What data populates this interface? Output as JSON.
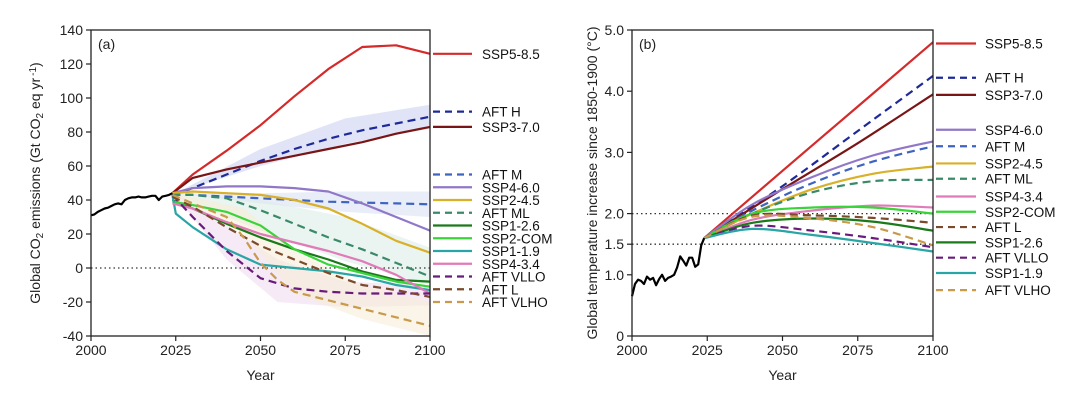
{
  "chart_data": [
    {
      "type": "line",
      "panel": "(a)",
      "title": "",
      "xlabel": "Year",
      "ylabel_parts": [
        "Global CO",
        "2",
        " emissions (Gt CO",
        "2",
        " eq yr",
        "-1",
        ")"
      ],
      "ylabel": "Global CO2 emissions (Gt CO2 eq yr-1)",
      "xlim": [
        2000,
        2100
      ],
      "ylim": [
        -40,
        140
      ],
      "xticks": [
        2000,
        2025,
        2050,
        2075,
        2100
      ],
      "yticks": [
        -40,
        -20,
        0,
        20,
        40,
        60,
        80,
        100,
        120,
        140
      ],
      "reference_lines": [
        {
          "y": 0,
          "style": "dotted"
        }
      ],
      "legend_placement": "right",
      "historical": {
        "name": "Historical",
        "color": "#000000",
        "x": [
          2000,
          2001,
          2002,
          2003,
          2004,
          2005,
          2006,
          2007,
          2008,
          2009,
          2010,
          2011,
          2012,
          2013,
          2014,
          2015,
          2016,
          2017,
          2018,
          2019,
          2020,
          2021,
          2022,
          2023,
          2024
        ],
        "y": [
          31,
          31.5,
          33,
          34,
          35,
          35.5,
          36.5,
          37.5,
          38,
          37.5,
          40,
          41,
          41.5,
          41.5,
          42,
          41.5,
          41.5,
          42,
          42.5,
          42.5,
          40,
          42,
          42.5,
          43,
          44
        ]
      },
      "bands": [
        {
          "name": "AFT H range",
          "color": "#c8cdf0",
          "x": [
            2025,
            2050,
            2075,
            2100
          ],
          "lower": [
            44,
            60,
            73,
            82
          ],
          "upper": [
            44,
            70,
            88,
            96
          ]
        },
        {
          "name": "AFT M range",
          "color": "#d5def2",
          "x": [
            2025,
            2050,
            2075,
            2100
          ],
          "lower": [
            44,
            38,
            33,
            30
          ],
          "upper": [
            44,
            44,
            45,
            45
          ]
        },
        {
          "name": "AFT ML range",
          "color": "#d8ebe3",
          "x": [
            2025,
            2050,
            2075,
            2100
          ],
          "lower": [
            42,
            22,
            4,
            -10
          ],
          "upper": [
            44,
            40,
            30,
            12
          ]
        },
        {
          "name": "AFT VLLO range",
          "color": "#efd8ef",
          "x": [
            2025,
            2040,
            2055,
            2075,
            2100
          ],
          "lower": [
            42,
            5,
            -20,
            -23,
            -22
          ],
          "upper": [
            44,
            25,
            5,
            -8,
            -10
          ]
        },
        {
          "name": "AFT VLHO range",
          "color": "#f6ecd5",
          "x": [
            2025,
            2045,
            2060,
            2080,
            2100
          ],
          "lower": [
            42,
            20,
            -15,
            -30,
            -40
          ],
          "upper": [
            44,
            35,
            10,
            -10,
            -20
          ]
        }
      ],
      "series": [
        {
          "name": "SSP5-8.5",
          "color": "#d42a2a",
          "dash": "solid",
          "x": [
            2024,
            2030,
            2040,
            2050,
            2060,
            2070,
            2080,
            2090,
            2100
          ],
          "y": [
            44,
            55,
            69,
            84,
            101,
            117,
            130,
            131,
            126
          ]
        },
        {
          "name": "AFT H",
          "color": "#1e2a9a",
          "dash": "dashed",
          "x": [
            2024,
            2030,
            2040,
            2050,
            2060,
            2070,
            2080,
            2090,
            2100
          ],
          "y": [
            43,
            47,
            55,
            63,
            70,
            76,
            81,
            85,
            89
          ]
        },
        {
          "name": "SSP3-7.0",
          "color": "#7a1515",
          "dash": "solid",
          "x": [
            2024,
            2030,
            2040,
            2050,
            2060,
            2070,
            2080,
            2090,
            2100
          ],
          "y": [
            44,
            53,
            58,
            62,
            66,
            70,
            74,
            79,
            83
          ]
        },
        {
          "name": "AFT M",
          "color": "#3f63c0",
          "dash": "dashed",
          "x": [
            2024,
            2030,
            2040,
            2050,
            2060,
            2070,
            2080,
            2090,
            2100
          ],
          "y": [
            43,
            43,
            42,
            41,
            40,
            39,
            38.5,
            38,
            37.5
          ]
        },
        {
          "name": "SSP4-6.0",
          "color": "#9077c8",
          "dash": "solid",
          "x": [
            2024,
            2030,
            2040,
            2050,
            2060,
            2070,
            2080,
            2090,
            2100
          ],
          "y": [
            44,
            47,
            48,
            48,
            47,
            45,
            38,
            30,
            22
          ]
        },
        {
          "name": "SSP2-4.5",
          "color": "#d9b02a",
          "dash": "solid",
          "x": [
            2024,
            2030,
            2040,
            2050,
            2060,
            2070,
            2080,
            2090,
            2100
          ],
          "y": [
            44,
            45,
            44,
            43,
            40,
            35,
            26,
            16,
            9
          ]
        },
        {
          "name": "AFT ML",
          "color": "#3a8a6a",
          "dash": "dashed",
          "x": [
            2024,
            2030,
            2040,
            2050,
            2060,
            2070,
            2080,
            2090,
            2100
          ],
          "y": [
            43,
            43,
            41,
            34,
            26,
            18,
            11,
            3,
            -5
          ]
        },
        {
          "name": "SSP1-2.6",
          "color": "#1a7a1a",
          "dash": "solid",
          "x": [
            2024,
            2030,
            2040,
            2050,
            2060,
            2070,
            2080,
            2090,
            2100
          ],
          "y": [
            40,
            35,
            26,
            18,
            11,
            5,
            -2,
            -7,
            -8
          ]
        },
        {
          "name": "SSP2-COM",
          "color": "#3ad43a",
          "dash": "solid",
          "x": [
            2024,
            2030,
            2040,
            2050,
            2060,
            2070,
            2080,
            2090,
            2100
          ],
          "y": [
            39,
            37,
            33,
            25,
            11,
            2,
            -3,
            -8,
            -11
          ]
        },
        {
          "name": "SSP1-1.9",
          "color": "#2aa5a5",
          "dash": "solid",
          "x": [
            2024,
            2025,
            2030,
            2040,
            2050,
            2060,
            2070,
            2080,
            2090,
            2100
          ],
          "y": [
            43,
            32,
            24,
            11,
            2,
            0,
            -2,
            -5,
            -10,
            -13
          ]
        },
        {
          "name": "SSP4-3.4",
          "color": "#e07ab8",
          "dash": "solid",
          "x": [
            2024,
            2030,
            2040,
            2050,
            2060,
            2070,
            2080,
            2090,
            2100
          ],
          "y": [
            38,
            35,
            27,
            20,
            15,
            10,
            4,
            -4,
            -15
          ]
        },
        {
          "name": "AFT VLLO",
          "color": "#6a1a7a",
          "dash": "dashed",
          "x": [
            2024,
            2030,
            2040,
            2050,
            2060,
            2070,
            2080,
            2090,
            2100
          ],
          "y": [
            43,
            30,
            10,
            -6,
            -12,
            -14,
            -15,
            -15,
            -15
          ]
        },
        {
          "name": "AFT L",
          "color": "#7a4a2a",
          "dash": "dashed",
          "x": [
            2024,
            2030,
            2040,
            2050,
            2060,
            2070,
            2080,
            2090,
            2100
          ],
          "y": [
            42,
            36,
            24,
            13,
            5,
            -3,
            -10,
            -13,
            -17
          ]
        },
        {
          "name": "AFT VLHO",
          "color": "#c89a4a",
          "dash": "dashed",
          "x": [
            2024,
            2030,
            2040,
            2045,
            2050,
            2055,
            2060,
            2070,
            2080,
            2090,
            2100
          ],
          "y": [
            43,
            38,
            30,
            18,
            3,
            -7,
            -14,
            -19,
            -24,
            -29,
            -34
          ]
        }
      ],
      "legend": [
        {
          "name": "SSP5-8.5",
          "y": 126
        },
        {
          "name": "AFT H",
          "y": 92
        },
        {
          "name": "SSP3-7.0",
          "y": 83
        },
        {
          "name": "AFT M",
          "y": 55
        },
        {
          "name": "SSP4-6.0",
          "y": 47.5
        },
        {
          "name": "SSP2-4.5",
          "y": 40
        },
        {
          "name": "AFT ML",
          "y": 32.5
        },
        {
          "name": "SSP1-2.6",
          "y": 25
        },
        {
          "name": "SSP2-COM",
          "y": 17.5
        },
        {
          "name": "SSP1-1.9",
          "y": 10
        },
        {
          "name": "SSP4-3.4",
          "y": 2.5
        },
        {
          "name": "AFT VLLO",
          "y": -5
        },
        {
          "name": "AFT L",
          "y": -12.5
        },
        {
          "name": "AFT VLHO",
          "y": -20
        }
      ]
    },
    {
      "type": "line",
      "panel": "(b)",
      "title": "",
      "xlabel": "Year",
      "ylabel": "Global temperature increase since 1850-1900 (°C)",
      "xlim": [
        2000,
        2100
      ],
      "ylim": [
        0,
        5.0
      ],
      "xticks": [
        2000,
        2025,
        2050,
        2075,
        2100
      ],
      "yticks": [
        0,
        1.0,
        1.5,
        2.0,
        3.0,
        4.0,
        5.0
      ],
      "ytick_labels": [
        "0",
        "1.0",
        "1.5",
        "2.0",
        "3.0",
        "4.0",
        "5.0"
      ],
      "reference_lines": [
        {
          "y": 1.5,
          "style": "dotted"
        },
        {
          "y": 2.0,
          "style": "dotted"
        }
      ],
      "legend_placement": "right",
      "historical": {
        "name": "Historical",
        "color": "#000000",
        "x": [
          2000,
          2001,
          2002,
          2003,
          2004,
          2005,
          2006,
          2007,
          2008,
          2009,
          2010,
          2011,
          2012,
          2013,
          2014,
          2015,
          2016,
          2017,
          2018,
          2019,
          2020,
          2021,
          2022,
          2023,
          2024
        ],
        "y": [
          0.65,
          0.85,
          0.92,
          0.9,
          0.85,
          0.97,
          0.92,
          0.95,
          0.83,
          0.93,
          1.0,
          0.9,
          0.95,
          0.97,
          1.0,
          1.12,
          1.3,
          1.23,
          1.15,
          1.28,
          1.28,
          1.13,
          1.17,
          1.48,
          1.6
        ]
      },
      "series": [
        {
          "name": "SSP5-8.5",
          "color": "#d42a2a",
          "dash": "solid",
          "x": [
            2024,
            2050,
            2075,
            2100
          ],
          "y": [
            1.6,
            2.7,
            3.75,
            4.8
          ]
        },
        {
          "name": "AFT H",
          "color": "#1e2a9a",
          "dash": "dashed",
          "x": [
            2024,
            2050,
            2075,
            2100
          ],
          "y": [
            1.6,
            2.45,
            3.35,
            4.25
          ]
        },
        {
          "name": "SSP3-7.0",
          "color": "#7a1515",
          "dash": "solid",
          "x": [
            2024,
            2050,
            2075,
            2100
          ],
          "y": [
            1.6,
            2.4,
            3.15,
            3.95
          ]
        },
        {
          "name": "SSP4-6.0",
          "color": "#9077c8",
          "dash": "solid",
          "x": [
            2024,
            2040,
            2060,
            2080,
            2100
          ],
          "y": [
            1.6,
            2.15,
            2.6,
            2.95,
            3.18
          ]
        },
        {
          "name": "AFT M",
          "color": "#3f63c0",
          "dash": "dashed",
          "x": [
            2024,
            2040,
            2060,
            2080,
            2100
          ],
          "y": [
            1.6,
            2.05,
            2.5,
            2.85,
            3.1
          ]
        },
        {
          "name": "SSP2-4.5",
          "color": "#d9b02a",
          "dash": "solid",
          "x": [
            2024,
            2040,
            2060,
            2080,
            2100
          ],
          "y": [
            1.6,
            2.0,
            2.4,
            2.65,
            2.77
          ]
        },
        {
          "name": "AFT ML",
          "color": "#3a8a6a",
          "dash": "dashed",
          "x": [
            2024,
            2040,
            2060,
            2080,
            2100
          ],
          "y": [
            1.6,
            2.0,
            2.35,
            2.53,
            2.55
          ]
        },
        {
          "name": "SSP4-3.4",
          "color": "#e07ab8",
          "dash": "solid",
          "x": [
            2024,
            2040,
            2060,
            2080,
            2100
          ],
          "y": [
            1.6,
            1.9,
            2.05,
            2.13,
            2.1
          ]
        },
        {
          "name": "SSP2-COM",
          "color": "#3ad43a",
          "dash": "solid",
          "x": [
            2024,
            2040,
            2060,
            2080,
            2100
          ],
          "y": [
            1.6,
            2.0,
            2.1,
            2.1,
            2.0
          ]
        },
        {
          "name": "AFT L",
          "color": "#7a4a2a",
          "dash": "dashed",
          "x": [
            2024,
            2040,
            2060,
            2080,
            2100
          ],
          "y": [
            1.6,
            1.97,
            1.97,
            1.93,
            1.85
          ]
        },
        {
          "name": "SSP1-2.6",
          "color": "#1a7a1a",
          "dash": "solid",
          "x": [
            2024,
            2040,
            2060,
            2080,
            2100
          ],
          "y": [
            1.6,
            1.85,
            1.92,
            1.87,
            1.72
          ]
        },
        {
          "name": "AFT VLLO",
          "color": "#6a1a7a",
          "dash": "dashed",
          "x": [
            2024,
            2040,
            2060,
            2080,
            2100
          ],
          "y": [
            1.6,
            1.8,
            1.72,
            1.6,
            1.45
          ]
        },
        {
          "name": "SSP1-1.9",
          "color": "#2aa5a5",
          "dash": "solid",
          "x": [
            2024,
            2040,
            2060,
            2080,
            2100
          ],
          "y": [
            1.6,
            1.75,
            1.65,
            1.52,
            1.38
          ]
        },
        {
          "name": "AFT VLHO",
          "color": "#c89a4a",
          "dash": "dashed",
          "x": [
            2024,
            2040,
            2060,
            2080,
            2100
          ],
          "y": [
            1.6,
            1.95,
            1.92,
            1.78,
            1.48
          ]
        }
      ],
      "legend": [
        {
          "name": "SSP5-8.5",
          "y": 4.78
        },
        {
          "name": "AFT H",
          "y": 4.22
        },
        {
          "name": "SSP3-7.0",
          "y": 3.94
        },
        {
          "name": "SSP4-6.0",
          "y": 3.37
        },
        {
          "name": "AFT M",
          "y": 3.1
        },
        {
          "name": "SSP2-4.5",
          "y": 2.82
        },
        {
          "name": "AFT ML",
          "y": 2.57
        },
        {
          "name": "SSP4-3.4",
          "y": 2.28
        },
        {
          "name": "SSP2-COM",
          "y": 2.03
        },
        {
          "name": "AFT L",
          "y": 1.78
        },
        {
          "name": "SSP1-2.6",
          "y": 1.53
        },
        {
          "name": "AFT VLLO",
          "y": 1.28
        },
        {
          "name": "SSP1-1.9",
          "y": 1.03
        },
        {
          "name": "AFT VLHO",
          "y": 0.75
        }
      ]
    }
  ]
}
